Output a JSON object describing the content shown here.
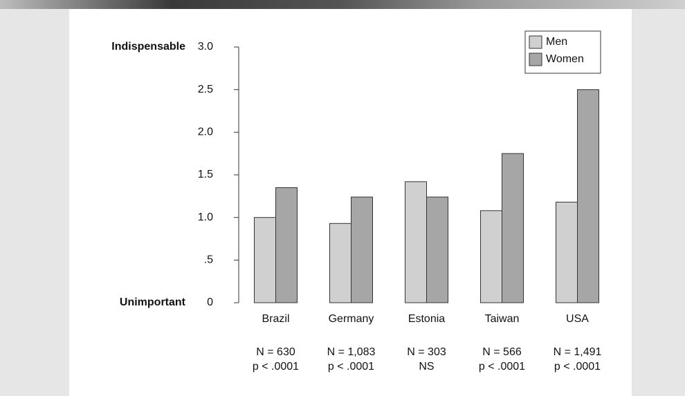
{
  "chart_data": {
    "type": "bar",
    "y_top_label": "Indispensable",
    "y_bottom_label": "Unimportant",
    "categories": [
      "Brazil",
      "Germany",
      "Estonia",
      "Taiwan",
      "USA"
    ],
    "series": [
      {
        "name": "Men",
        "color": "#d0d0d0",
        "values": [
          1.0,
          0.93,
          1.42,
          1.08,
          1.18
        ]
      },
      {
        "name": "Women",
        "color": "#a6a6a6",
        "values": [
          1.35,
          1.24,
          1.24,
          1.75,
          2.5
        ]
      }
    ],
    "n_notes": [
      "N = 630",
      "N = 1,083",
      "N = 303",
      "N = 566",
      "N = 1,491"
    ],
    "p_notes": [
      "p < .0001",
      "p < .0001",
      "NS",
      "p < .0001",
      "p < .0001"
    ],
    "ylim": [
      0,
      3
    ],
    "yticks": [
      0,
      {
        "value": 0.5,
        "label": ".5"
      },
      {
        "value": 1,
        "label": "1.0"
      },
      1.5,
      {
        "value": 2,
        "label": "2.0"
      },
      2.5,
      {
        "value": 3,
        "label": "3.0"
      }
    ],
    "legend": "top-right"
  }
}
